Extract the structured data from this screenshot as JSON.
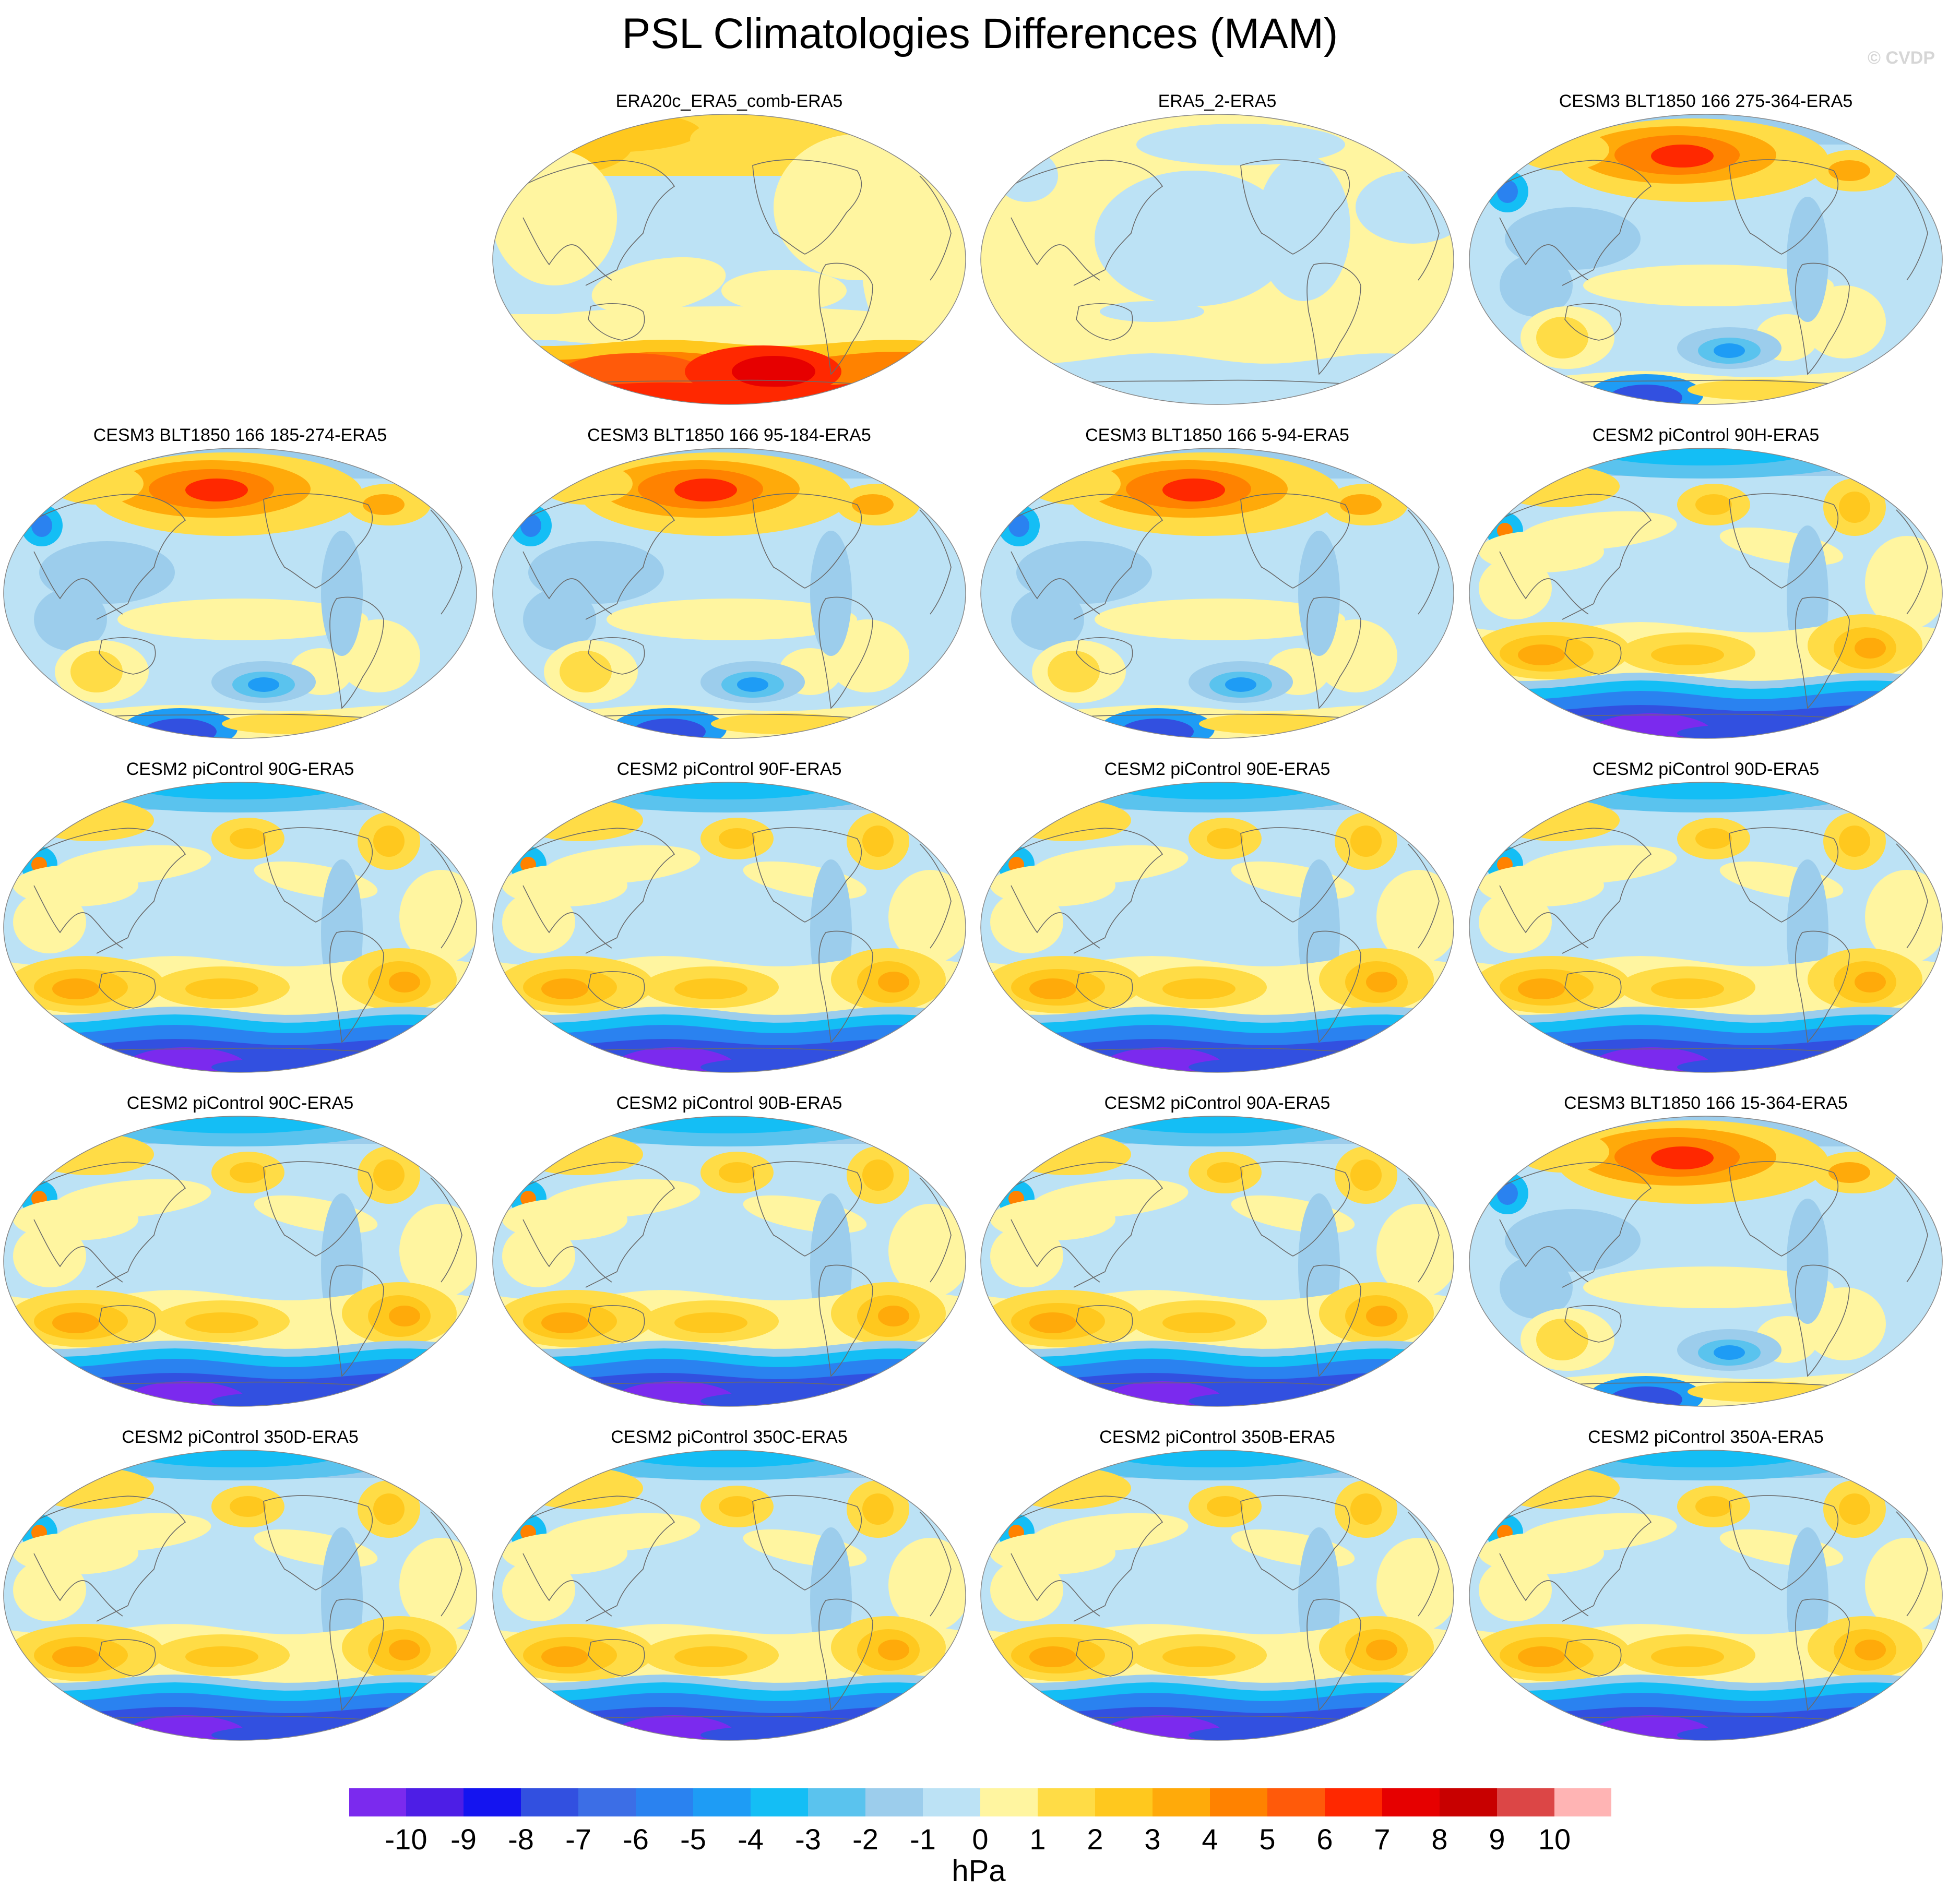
{
  "title": "PSL Climatologies Differences (MAM)",
  "watermark": "© CVDP",
  "panels": [
    {
      "title": "ERA20c_ERA5_comb-ERA5",
      "pattern": "era20c"
    },
    {
      "title": "ERA5_2-ERA5",
      "pattern": "era5_2"
    },
    {
      "title": "CESM3 BLT1850 166 275-364-ERA5",
      "pattern": "cesm3"
    },
    {
      "title": "CESM3 BLT1850 166 185-274-ERA5",
      "pattern": "cesm3"
    },
    {
      "title": "CESM3 BLT1850 166 95-184-ERA5",
      "pattern": "cesm3"
    },
    {
      "title": "CESM3 BLT1850 166 5-94-ERA5",
      "pattern": "cesm3"
    },
    {
      "title": "CESM2 piControl 90H-ERA5",
      "pattern": "cesm2"
    },
    {
      "title": "CESM2 piControl 90G-ERA5",
      "pattern": "cesm2"
    },
    {
      "title": "CESM2 piControl 90F-ERA5",
      "pattern": "cesm2"
    },
    {
      "title": "CESM2 piControl 90E-ERA5",
      "pattern": "cesm2"
    },
    {
      "title": "CESM2 piControl 90D-ERA5",
      "pattern": "cesm2"
    },
    {
      "title": "CESM2 piControl 90C-ERA5",
      "pattern": "cesm2"
    },
    {
      "title": "CESM2 piControl 90B-ERA5",
      "pattern": "cesm2"
    },
    {
      "title": "CESM2 piControl 90A-ERA5",
      "pattern": "cesm2"
    },
    {
      "title": "CESM3 BLT1850 166 15-364-ERA5",
      "pattern": "cesm3"
    },
    {
      "title": "CESM2 piControl 350D-ERA5",
      "pattern": "cesm2"
    },
    {
      "title": "CESM2 piControl 350C-ERA5",
      "pattern": "cesm2"
    },
    {
      "title": "CESM2 piControl 350B-ERA5",
      "pattern": "cesm2"
    },
    {
      "title": "CESM2 piControl 350A-ERA5",
      "pattern": "cesm2"
    }
  ],
  "colorbar": {
    "units": "hPa",
    "tick_labels": [
      "-10",
      "-9",
      "-8",
      "-7",
      "-6",
      "-5",
      "-4",
      "-3",
      "-2",
      "-1",
      "0",
      "1",
      "2",
      "3",
      "4",
      "5",
      "6",
      "7",
      "8",
      "9",
      "10"
    ],
    "colors": [
      "#7b2aee",
      "#4d1ee6",
      "#1414f0",
      "#3250e0",
      "#3c6ee6",
      "#2a82f0",
      "#1e9cf5",
      "#14bef5",
      "#5ac3ee",
      "#9ccdec",
      "#bce2f5",
      "#fff5a0",
      "#ffdc46",
      "#ffc81e",
      "#ffaa0a",
      "#ff8200",
      "#ff5a0a",
      "#ff2800",
      "#e60000",
      "#c80000",
      "#dc4646",
      "#ffb4b4"
    ]
  },
  "palette": {
    "ocean_light": "#bce2f5",
    "neg1": "#9ccdec",
    "neg2": "#5ac3ee",
    "neg3": "#14bef5",
    "neg4": "#1e9cf5",
    "neg5": "#2a82f0",
    "neg7": "#3250e0",
    "neg10": "#7b2aee",
    "pos0": "#fff5a0",
    "pos1": "#ffdc46",
    "pos2": "#ffc81e",
    "pos3": "#ffaa0a",
    "pos4": "#ff8200",
    "pos5": "#ff5a0a",
    "pos6": "#ff2800",
    "pos7": "#e60000",
    "coast": "#6a6a6a"
  }
}
